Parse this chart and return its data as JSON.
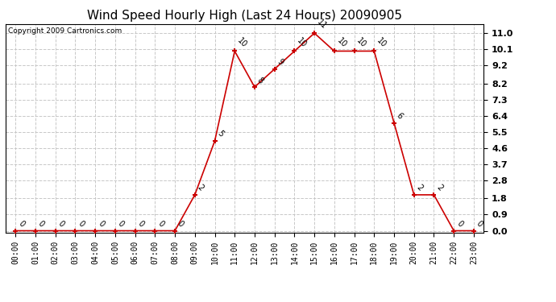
{
  "title": "Wind Speed Hourly High (Last 24 Hours) 20090905",
  "copyright": "Copyright 2009 Cartronics.com",
  "hours": [
    "00:00",
    "01:00",
    "02:00",
    "03:00",
    "04:00",
    "05:00",
    "06:00",
    "07:00",
    "08:00",
    "09:00",
    "10:00",
    "11:00",
    "12:00",
    "13:00",
    "14:00",
    "15:00",
    "16:00",
    "17:00",
    "18:00",
    "19:00",
    "20:00",
    "21:00",
    "22:00",
    "23:00"
  ],
  "values": [
    0,
    0,
    0,
    0,
    0,
    0,
    0,
    0,
    0,
    2,
    5,
    10,
    8,
    9,
    10,
    11,
    10,
    10,
    10,
    6,
    2,
    2,
    0,
    0
  ],
  "yticks": [
    0.0,
    0.9,
    1.8,
    2.8,
    3.7,
    4.6,
    5.5,
    6.4,
    7.3,
    8.2,
    9.2,
    10.1,
    11.0
  ],
  "line_color": "#cc0000",
  "marker_color": "#cc0000",
  "bg_color": "#ffffff",
  "grid_color": "#c8c8c8",
  "title_fontsize": 11,
  "copyright_fontsize": 6.5,
  "tick_fontsize": 7,
  "annotation_fontsize": 7,
  "ytick_fontsize": 8,
  "ylim_min": -0.1,
  "ylim_max": 11.5
}
